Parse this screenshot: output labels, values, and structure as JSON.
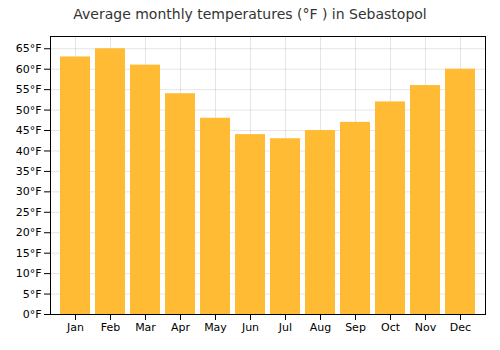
{
  "chart_data": {
    "type": "bar",
    "title": "Average monthly temperatures (°F ) in Sebastopol",
    "categories": [
      "Jan",
      "Feb",
      "Mar",
      "Apr",
      "May",
      "Jun",
      "Jul",
      "Aug",
      "Sep",
      "Oct",
      "Nov",
      "Dec"
    ],
    "values": [
      63,
      65,
      61,
      54,
      48,
      44,
      43,
      45,
      47,
      52,
      56,
      60
    ],
    "color": "#FFBB33",
    "ylim": [
      0,
      68
    ],
    "yticks": [
      {
        "value": 0,
        "label": "0°F"
      },
      {
        "value": 5,
        "label": "5°F"
      },
      {
        "value": 10,
        "label": "10°F"
      },
      {
        "value": 15,
        "label": "15°F"
      },
      {
        "value": 20,
        "label": "20°F"
      },
      {
        "value": 25,
        "label": "25°F"
      },
      {
        "value": 30,
        "label": "30°F"
      },
      {
        "value": 35,
        "label": "35°F"
      },
      {
        "value": 40,
        "label": "40°F"
      },
      {
        "value": 45,
        "label": "45°F"
      },
      {
        "value": 50,
        "label": "50°F"
      },
      {
        "value": 55,
        "label": "55°F"
      },
      {
        "value": 60,
        "label": "60°F"
      },
      {
        "value": 65,
        "label": "65°F"
      }
    ],
    "grid": true
  }
}
